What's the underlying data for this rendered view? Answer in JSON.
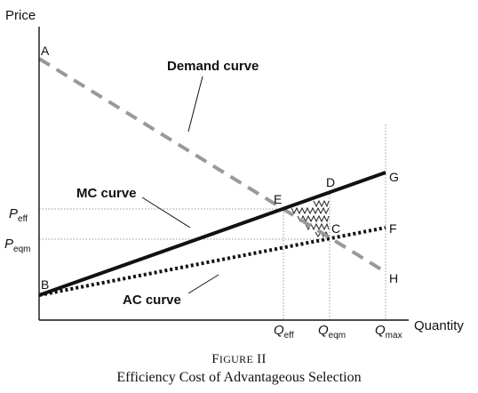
{
  "axes": {
    "y_title": "Price",
    "x_title": "Quantity"
  },
  "curves": {
    "demand": "Demand curve",
    "mc": "MC curve",
    "ac": "AC curve"
  },
  "points": {
    "A": "A",
    "B": "B",
    "C": "C",
    "D": "D",
    "E": "E",
    "F": "F",
    "G": "G",
    "H": "H"
  },
  "price_ticks": {
    "p_eff": {
      "main": "P",
      "sub": "eff"
    },
    "p_eqm": {
      "main": "P",
      "sub": "eqm"
    }
  },
  "quantity_ticks": {
    "q_eff": {
      "main": "Q",
      "sub": "eff"
    },
    "q_eqm": {
      "main": "Q",
      "sub": "eqm"
    },
    "q_max": {
      "main": "Q",
      "sub": "max"
    }
  },
  "caption": {
    "label_first": "F",
    "label_rest": "IGURE",
    "label_number": "II",
    "title": "Efficiency Cost of Advantageous Selection"
  },
  "style": {
    "demand_color": "#999999",
    "mc_color": "#111111",
    "ac_color": "#111111",
    "guide_color": "#999999"
  }
}
